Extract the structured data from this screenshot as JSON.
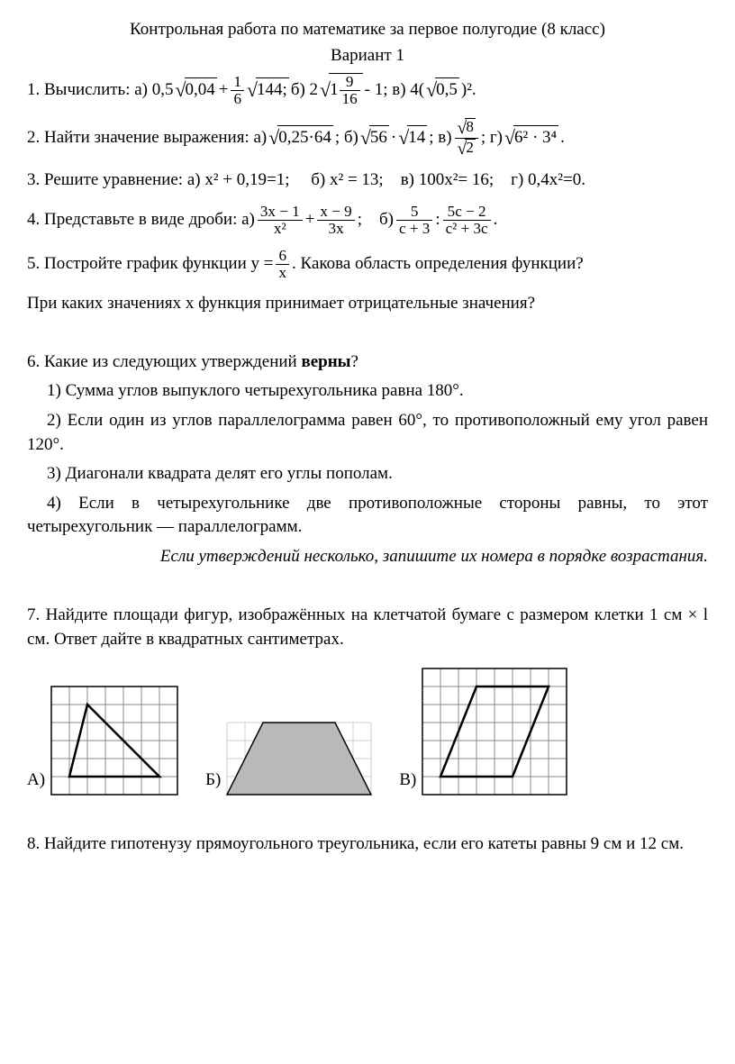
{
  "title": "Контрольная работа по математике за первое полугодие (8 класс)",
  "variant": "Вариант 1",
  "q1_lead": "1. Вычислить: а) 0,5",
  "q1_plus": "+",
  "q1_b": " б) 2",
  "q1_b_tail": " - 1;  в) 4(",
  "q1_v_tail": " )².",
  "frac_1_6_n": "1",
  "frac_1_6_d": "6",
  "sqrt_004": "0,04",
  "sqrt_144": "144;",
  "mixed_1": "1",
  "frac_9_16_n": "9",
  "frac_9_16_d": "16",
  "sqrt_05": "0,5",
  "q2_lead": "2. Найти значение выражения: а)",
  "q2_sc": " ; б) ",
  "q2_dot": " · ",
  "q2_v": " ; в) ",
  "q2_g": " ;  г) ",
  "q2_end": " .",
  "sqrt_025_64": "0,25·64",
  "sqrt_56": "56",
  "sqrt_14": "14",
  "sqrt_8": "8",
  "sqrt_2": "2",
  "sqrt_6234": "6² · 3⁴",
  "q3": "3. Решите уравнение: а) х² + 0,19=1;  б) х² = 13; в) 100х²= 16; г) 0,4х²=0.",
  "q4_lead": "4. Представьте в виде дроби: а) ",
  "q4_plus": " + ",
  "q4_b": " ; б) ",
  "q4_div": " : ",
  "q4_end": " .",
  "f41n": "3x − 1",
  "f41d": "x²",
  "f42n": "x − 9",
  "f42d": "3x",
  "f43n": "5",
  "f43d": "c + 3",
  "f44n": "5c − 2",
  "f44d": "c² + 3c",
  "q5_a": "5. Постройте график функции у = ",
  "f5n": "6",
  "f5d": "x",
  "q5_b": " . Какова область определения функции?",
  "q5_line2": " При каких значениях х функция принимает отрицательные значения?",
  "q6_lead_a": "6. ",
  "q6_lead_b": "Какие из следующих утверждений ",
  "q6_bold": "верны",
  "q6_qm": "?",
  "q6_1": "1) Сумма углов выпуклого четырехугольника равна 180°.",
  "q6_2": "2) Если один из углов параллелограмма равен 60°, то противоположный ему угол равен 120°.",
  "q6_3": "3) Диагонали квадрата делят его углы пополам.",
  "q6_4": "4) Если в четырехугольнике две противоположные стороны равны, то этот четырехугольник — параллелограмм.",
  "q6_note": "Если утверждений несколько, запишите их номера в порядке возрастания.",
  "q7_a": "7. ",
  "q7_b": "Найдите площади фигур, изображённых на клетчатой бумаге с размером клетки 1 см × l см. Ответ дайте в квадратных сантиметрах.",
  "labelA": "А)",
  "labelB": "Б)",
  "labelV": "В)",
  "q8": "8. Найдите гипотенузу прямоугольного треугольника, если его катеты равны 9 см и 12 см.",
  "grid": {
    "cell": 20,
    "grid_color": "#888888",
    "outer_color": "#000000",
    "fill_gray": "#b9b9b9",
    "shape_stroke": "#000000",
    "A": {
      "cols": 7,
      "rows": 6,
      "triangle": [
        [
          1,
          5
        ],
        [
          2,
          1
        ],
        [
          6,
          5
        ]
      ]
    },
    "B": {
      "cols": 8,
      "rows": 4,
      "trap": [
        [
          0,
          4
        ],
        [
          2,
          0
        ],
        [
          6,
          0
        ],
        [
          8,
          4
        ]
      ]
    },
    "V": {
      "cols": 8,
      "rows": 7,
      "para": [
        [
          3,
          1
        ],
        [
          7,
          1
        ],
        [
          5,
          6
        ],
        [
          1,
          6
        ]
      ]
    }
  }
}
